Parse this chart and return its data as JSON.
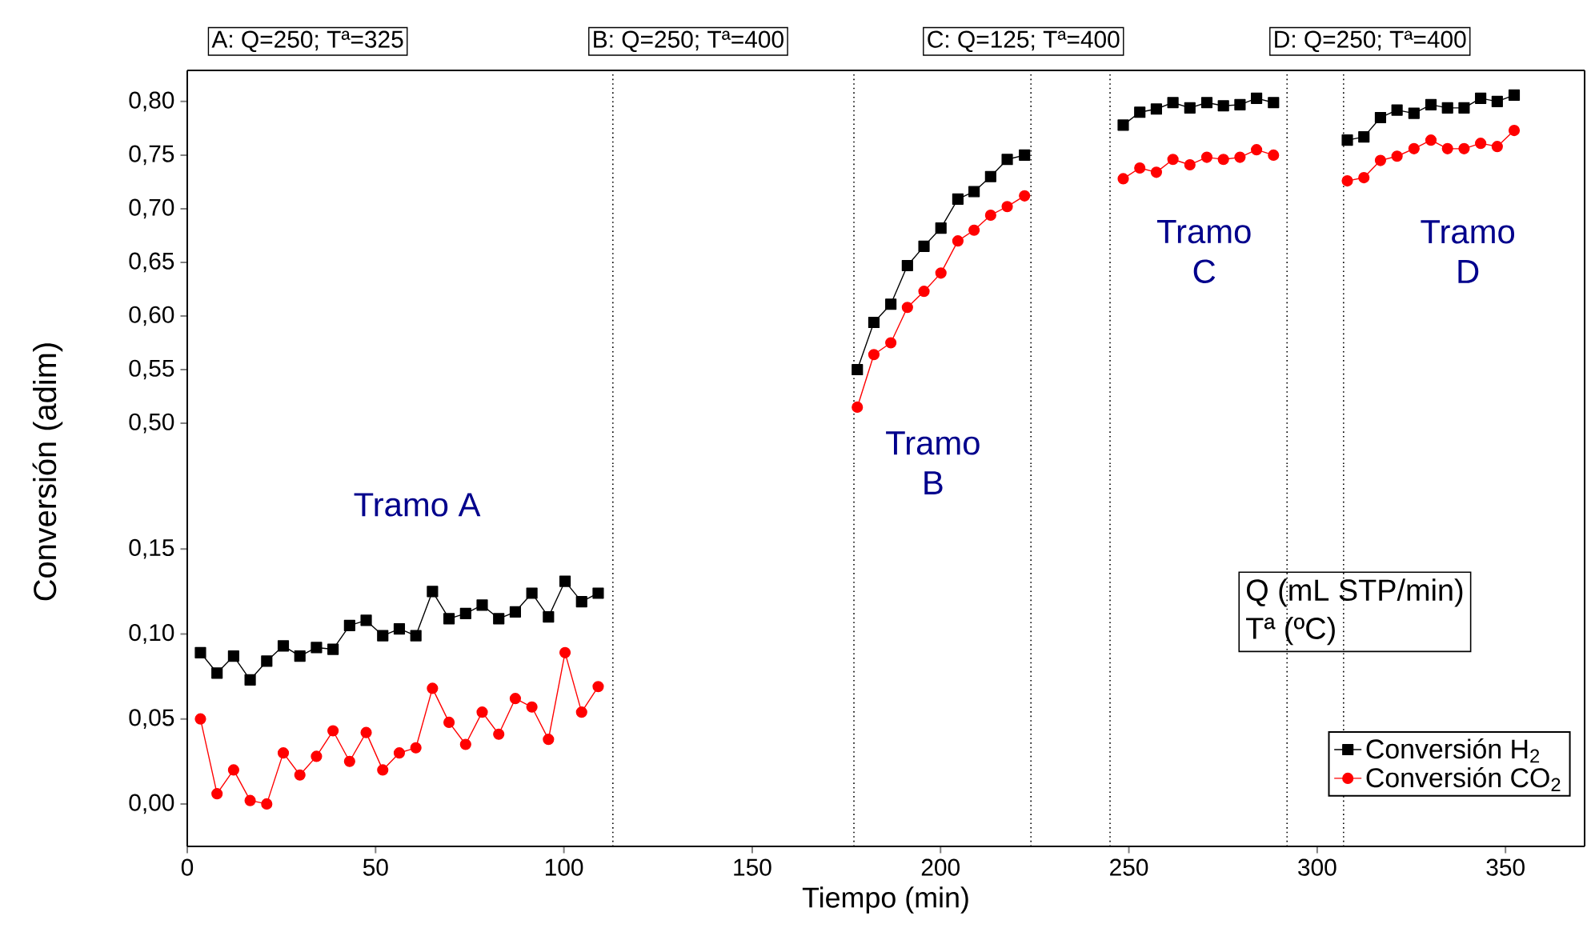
{
  "chart_data": [
    {
      "type": "line",
      "xlim": [
        0,
        371
      ],
      "ylim": [
        0.462,
        0.829
      ],
      "tick_labels": "y",
      "yticks": [
        {
          "value": 0.5,
          "label": "0,50"
        },
        {
          "value": 0.55,
          "label": "0,55"
        },
        {
          "value": 0.6,
          "label": "0,60"
        },
        {
          "value": 0.65,
          "label": "0,65"
        },
        {
          "value": 0.7,
          "label": "0,70"
        },
        {
          "value": 0.75,
          "label": "0,75"
        },
        {
          "value": 0.8,
          "label": "0,80"
        }
      ],
      "series": [
        {
          "color": "#000000",
          "marker": "square",
          "x": [
            177.9,
            182.3,
            186.8,
            191.2,
            195.6,
            200.1,
            204.6,
            208.9,
            213.3,
            217.7,
            222.3,
            235,
            248.5,
            252.9,
            257.3,
            261.7,
            266.2,
            270.7,
            275.1,
            279.5,
            283.9,
            288.4,
            300,
            308,
            312.4,
            316.8,
            321.2,
            325.7,
            330.2,
            334.6,
            339,
            343.4,
            347.8,
            352.3
          ],
          "values": [
            0.55,
            0.594,
            0.611,
            0.647,
            0.665,
            0.682,
            0.709,
            0.716,
            0.73,
            0.746,
            0.75,
            null,
            0.778,
            0.79,
            0.793,
            0.799,
            0.794,
            0.799,
            0.796,
            0.797,
            0.803,
            0.799,
            null,
            0.764,
            0.767,
            0.785,
            0.792,
            0.789,
            0.797,
            0.794,
            0.794,
            0.803,
            0.8,
            0.806
          ]
        },
        {
          "color": "#ff0000",
          "marker": "circle",
          "x": [
            177.9,
            182.3,
            186.8,
            191.2,
            195.6,
            200.1,
            204.6,
            208.9,
            213.3,
            217.7,
            222.3,
            235,
            248.5,
            252.9,
            257.3,
            261.7,
            266.2,
            270.7,
            275.1,
            279.5,
            283.9,
            288.4,
            300,
            308,
            312.4,
            316.8,
            321.2,
            325.7,
            330.2,
            334.6,
            339,
            343.4,
            347.8,
            352.3
          ],
          "values": [
            0.515,
            0.564,
            0.575,
            0.608,
            0.623,
            0.64,
            0.67,
            0.68,
            0.694,
            0.702,
            0.712,
            null,
            0.728,
            0.738,
            0.734,
            0.746,
            0.741,
            0.748,
            0.746,
            0.748,
            0.755,
            0.75,
            null,
            0.726,
            0.729,
            0.745,
            0.749,
            0.756,
            0.764,
            0.756,
            0.756,
            0.761,
            0.758,
            0.773
          ]
        }
      ],
      "ref_lines": [
        {
          "axis": "x",
          "value": 113,
          "line_style": "dotted"
        },
        {
          "axis": "x",
          "value": 177,
          "line_style": "dotted"
        },
        {
          "axis": "x",
          "value": 224,
          "line_style": "dotted"
        },
        {
          "axis": "x",
          "value": 245,
          "line_style": "dotted"
        },
        {
          "axis": "x",
          "value": 292,
          "line_style": "dotted"
        },
        {
          "axis": "x",
          "value": 307,
          "line_style": "dotted"
        }
      ],
      "annotations": [
        "A: Q=250; Tª=325",
        "B: Q=250; Tª=400",
        "C: Q=125; Tª=400",
        "D: Q=250; Tª=400",
        "Tramo B",
        "Tramo C",
        "Tramo D"
      ]
    },
    {
      "type": "line",
      "xlabel": "Tiempo (min)",
      "ylabel": "Conversión (adim)",
      "xlim": [
        0,
        371
      ],
      "ylim": [
        -0.025,
        0.2
      ],
      "legend": "bottom right",
      "xticks": [
        0,
        50,
        100,
        150,
        200,
        250,
        300,
        350
      ],
      "yticks": [
        {
          "value": 0,
          "label": "0,00"
        },
        {
          "value": 0.05,
          "label": "0,05"
        },
        {
          "value": 0.1,
          "label": "0,10"
        },
        {
          "value": 0.15,
          "label": "0,15"
        }
      ],
      "series": [
        {
          "name": "Conversión H$_{2}$",
          "color": "#000000",
          "marker": "square",
          "x": [
            3.5,
            7.9,
            12.3,
            16.7,
            21.1,
            25.5,
            29.9,
            34.3,
            38.7,
            43.1,
            47.5,
            51.9,
            56.3,
            60.7,
            65.1,
            69.5,
            73.9,
            78.3,
            82.7,
            87.1,
            91.5,
            95.9,
            100.3,
            104.7,
            109.1
          ],
          "values": [
            0.089,
            0.077,
            0.087,
            0.073,
            0.084,
            0.093,
            0.087,
            0.092,
            0.091,
            0.105,
            0.108,
            0.099,
            0.103,
            0.099,
            0.125,
            0.109,
            0.112,
            0.117,
            0.109,
            0.113,
            0.124,
            0.11,
            0.131,
            0.119,
            0.124
          ]
        },
        {
          "name": "Conversión CO$_{2}$",
          "color": "#ff0000",
          "marker": "circle",
          "x": [
            3.5,
            7.9,
            12.3,
            16.7,
            21.1,
            25.5,
            29.9,
            34.3,
            38.7,
            43.1,
            47.5,
            51.9,
            56.3,
            60.7,
            65.1,
            69.5,
            73.9,
            78.3,
            82.7,
            87.1,
            91.5,
            95.9,
            100.3,
            104.7,
            109.1
          ],
          "values": [
            0.05,
            0.006,
            0.02,
            0.002,
            0.0,
            0.03,
            0.017,
            0.028,
            0.043,
            0.025,
            0.042,
            0.02,
            0.03,
            0.033,
            0.068,
            0.048,
            0.035,
            0.054,
            0.041,
            0.062,
            0.057,
            0.038,
            0.089,
            0.054,
            0.069
          ]
        }
      ],
      "ref_lines": [
        {
          "axis": "x",
          "value": 113,
          "line_style": "dotted"
        },
        {
          "axis": "x",
          "value": 177,
          "line_style": "dotted"
        },
        {
          "axis": "x",
          "value": 224,
          "line_style": "dotted"
        },
        {
          "axis": "x",
          "value": 245,
          "line_style": "dotted"
        },
        {
          "axis": "x",
          "value": 292,
          "line_style": "dotted"
        },
        {
          "axis": "x",
          "value": 307,
          "line_style": "dotted"
        }
      ],
      "annotations": [
        "Tramo A",
        "Q (mL STP/min)",
        "Tª (ºC)"
      ]
    }
  ]
}
